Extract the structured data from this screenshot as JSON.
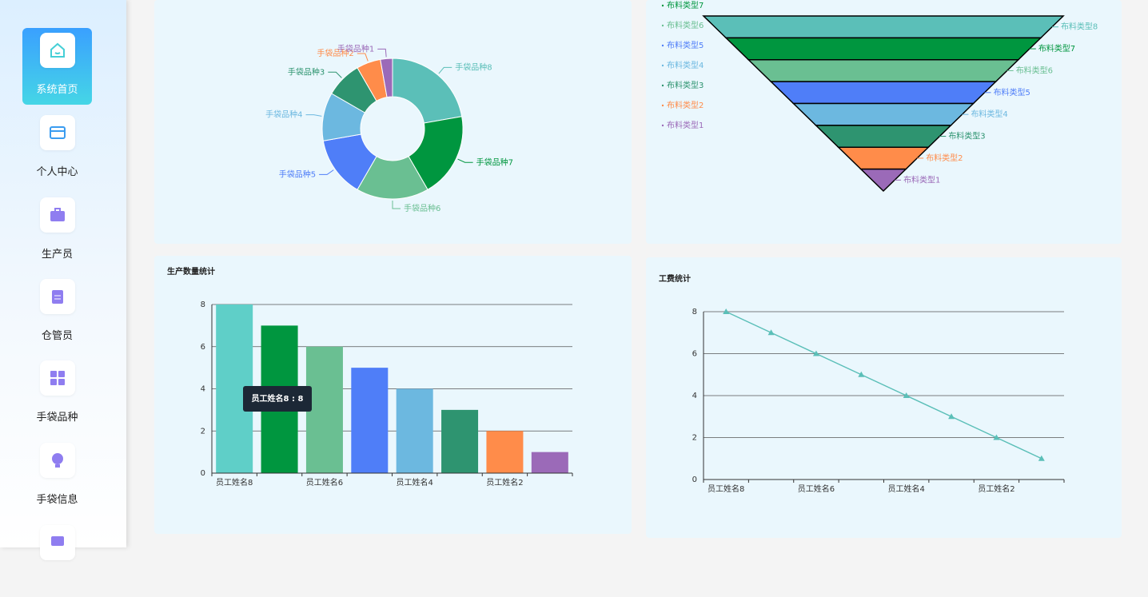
{
  "sidebar": {
    "items": [
      "系统首页",
      "个人中心",
      "生产员",
      "仓管员",
      "手袋品种",
      "手袋信息"
    ]
  },
  "chart_data": [
    {
      "type": "pie",
      "donut": true,
      "categories": [
        "手袋品种8",
        "手袋品种7",
        "手袋品种6",
        "手袋品种5",
        "手袋品种4",
        "手袋品种3",
        "手袋品种2",
        "手袋品种1"
      ],
      "values": [
        8,
        7,
        6,
        5,
        4,
        3,
        2,
        1
      ],
      "colors": [
        "#5bbfb8",
        "#00963f",
        "#6abf92",
        "#4f7ef8",
        "#6cb8e0",
        "#2e9470",
        "#ff8c4a",
        "#9b6ab8"
      ]
    },
    {
      "type": "funnel",
      "categories": [
        "布料类型8",
        "布料类型7",
        "布料类型6",
        "布料类型5",
        "布料类型4",
        "布料类型3",
        "布料类型2",
        "布料类型1"
      ],
      "values": [
        8,
        7,
        6,
        5,
        4,
        3,
        2,
        1
      ],
      "colors": [
        "#5bbfb8",
        "#00963f",
        "#6abf92",
        "#4f7ef8",
        "#6cb8e0",
        "#2e9470",
        "#ff8c4a",
        "#9b6ab8"
      ],
      "legend": "left"
    },
    {
      "type": "bar",
      "title": "生产数量统计",
      "categories": [
        "员工姓名8",
        null,
        "员工姓名6",
        null,
        "员工姓名4",
        null,
        "员工姓名2",
        null
      ],
      "values": [
        8,
        7,
        6,
        5,
        4,
        3,
        2,
        1
      ],
      "colors": [
        "#5fcfc8",
        "#00963f",
        "#6abf92",
        "#4f7ef8",
        "#6cb8e0",
        "#2e9470",
        "#ff8c4a",
        "#9b6ab8"
      ],
      "ylim": [
        0,
        8
      ],
      "yticks": [
        0,
        2,
        4,
        6,
        8
      ],
      "grid": true,
      "tooltip": "员工姓名8 : 8"
    },
    {
      "type": "line",
      "title": "工费统计",
      "categories": [
        "员工姓名8",
        null,
        "员工姓名6",
        null,
        "员工姓名4",
        null,
        "员工姓名2",
        null
      ],
      "values": [
        8,
        7,
        6,
        5,
        4,
        3,
        2,
        1
      ],
      "color": "#5bbfb8",
      "marker": "triangle",
      "ylim": [
        0,
        8
      ],
      "yticks": [
        0,
        2,
        4,
        6,
        8
      ],
      "grid": true
    }
  ]
}
